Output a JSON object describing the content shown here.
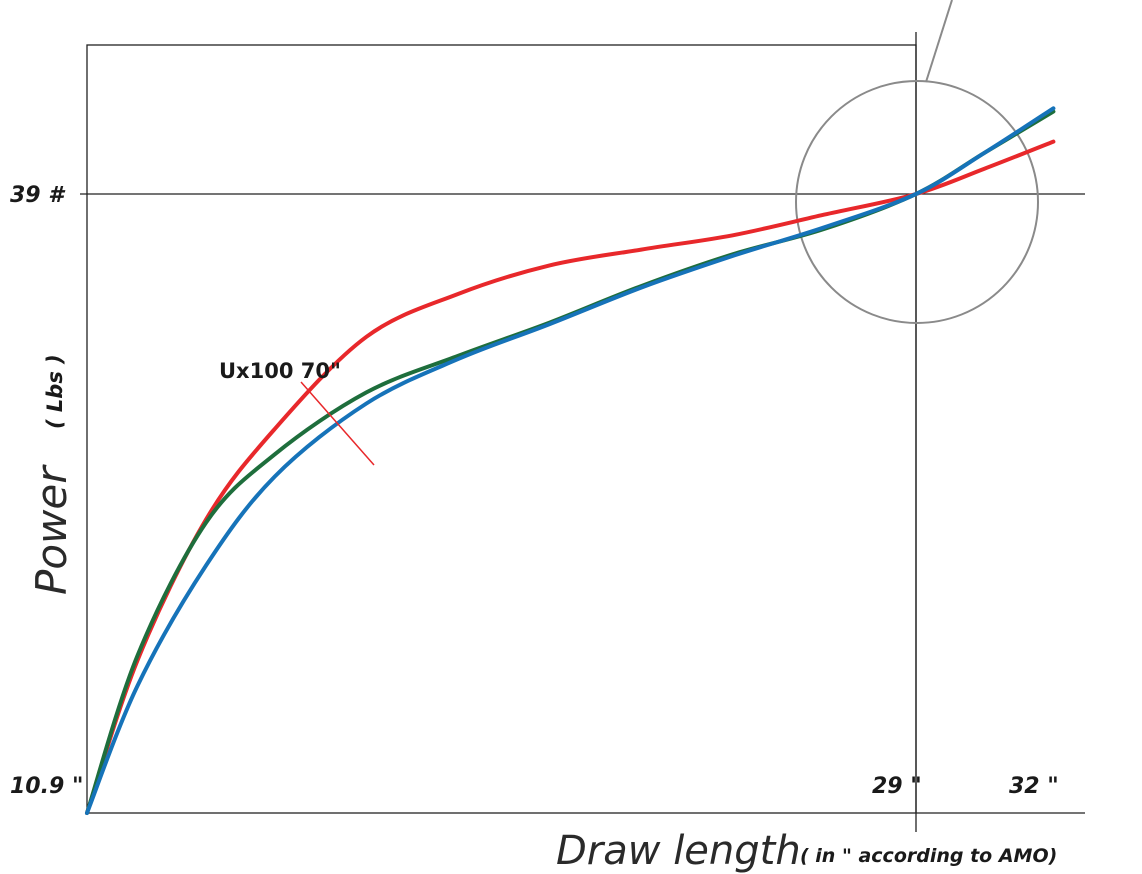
{
  "chart_data": {
    "type": "line",
    "xlabel": "Draw length",
    "xlabel_unit": "( in \" according to AMO)",
    "ylabel": "Power",
    "ylabel_unit": "( Lbs )",
    "x_ticks": [
      {
        "value": 10.9,
        "label": "10.9 \""
      },
      {
        "value": 29,
        "label": "29 \""
      },
      {
        "value": 32,
        "label": "32 \""
      }
    ],
    "y_ticks": [
      {
        "value": 39,
        "label": "39 #"
      }
    ],
    "xlim": [
      10.9,
      34.8
    ],
    "ylim": [
      0,
      57
    ],
    "grid": false,
    "reference_point": {
      "x": 29,
      "y": 39
    },
    "annotation": {
      "text": "Ux100 70\"",
      "series_index": 0
    },
    "series": [
      {
        "color": "#e8282b",
        "x": [
          10.9,
          12,
          13.5,
          15,
          17,
          19,
          21,
          23,
          25,
          27,
          29,
          30.5,
          32
        ],
        "y": [
          0,
          9.6,
          18.5,
          24.2,
          30.0,
          32.7,
          34.5,
          35.5,
          36.4,
          37.7,
          39.0,
          40.6,
          42.3
        ]
      },
      {
        "color": "#1e6e3c",
        "x": [
          10.9,
          12,
          13.5,
          15,
          17,
          19,
          21,
          23,
          25,
          27,
          29,
          30.5,
          32
        ],
        "y": [
          0,
          9.9,
          18.3,
          22.6,
          26.5,
          28.8,
          30.9,
          33.2,
          35.2,
          36.8,
          39.0,
          41.6,
          44.2
        ]
      },
      {
        "color": "#1673b9",
        "x": [
          10.9,
          12,
          13.5,
          15,
          17,
          19,
          21,
          23,
          25,
          27,
          29,
          30.5,
          32
        ],
        "y": [
          0,
          8.0,
          15.6,
          21.2,
          25.8,
          28.6,
          30.8,
          33.1,
          35.1,
          36.9,
          39.0,
          41.6,
          44.4
        ]
      }
    ]
  }
}
